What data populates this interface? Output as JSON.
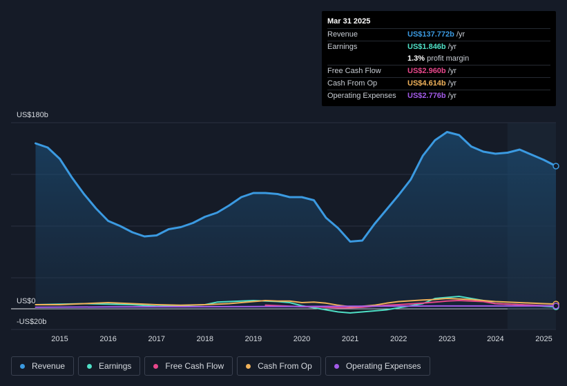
{
  "tooltip": {
    "date": "Mar 31 2025",
    "rows": [
      {
        "label": "Revenue",
        "value": "US$137.772b",
        "unit": "/yr",
        "color": "#3b9ae1"
      },
      {
        "label": "Earnings",
        "value": "US$1.846b",
        "unit": "/yr",
        "color": "#4fe0c6"
      },
      {
        "label": "",
        "value": "1.3%",
        "unit": "profit margin",
        "color": "#ffffff"
      },
      {
        "label": "Free Cash Flow",
        "value": "US$2.960b",
        "unit": "/yr",
        "color": "#e8478b"
      },
      {
        "label": "Cash From Op",
        "value": "US$4.614b",
        "unit": "/yr",
        "color": "#f0b25a"
      },
      {
        "label": "Operating Expenses",
        "value": "US$2.776b",
        "unit": "/yr",
        "color": "#a35be8"
      }
    ]
  },
  "legend": [
    {
      "label": "Revenue",
      "color": "#3b9ae1"
    },
    {
      "label": "Earnings",
      "color": "#4fe0c6"
    },
    {
      "label": "Free Cash Flow",
      "color": "#e8478b"
    },
    {
      "label": "Cash From Op",
      "color": "#f0b25a"
    },
    {
      "label": "Operating Expenses",
      "color": "#a35be8"
    }
  ],
  "chart_data": {
    "type": "line",
    "title": "",
    "xlabel": "",
    "ylabel": "",
    "xlim": [
      2014.45,
      2025.25
    ],
    "ylim": [
      -20,
      180
    ],
    "y_tick_labels": [
      {
        "value": 180,
        "label": "US$180b"
      },
      {
        "value": 0,
        "label": "US$0"
      },
      {
        "value": -20,
        "label": "-US$20b"
      }
    ],
    "x_ticks": [
      {
        "value": 2015,
        "label": "2015"
      },
      {
        "value": 2016,
        "label": "2016"
      },
      {
        "value": 2017,
        "label": "2017"
      },
      {
        "value": 2018,
        "label": "2018"
      },
      {
        "value": 2019,
        "label": "2019"
      },
      {
        "value": 2020,
        "label": "2020"
      },
      {
        "value": 2021,
        "label": "2021"
      },
      {
        "value": 2022,
        "label": "2022"
      },
      {
        "value": 2023,
        "label": "2023"
      },
      {
        "value": 2024,
        "label": "2024"
      },
      {
        "value": 2025,
        "label": "2025"
      }
    ],
    "highlight_from": 2024.25,
    "series": [
      {
        "name": "Revenue",
        "color": "#3b9ae1",
        "area": true,
        "points": [
          [
            2014.5,
            160
          ],
          [
            2014.75,
            156
          ],
          [
            2015.0,
            145
          ],
          [
            2015.25,
            127
          ],
          [
            2015.5,
            111
          ],
          [
            2015.75,
            97
          ],
          [
            2016.0,
            85
          ],
          [
            2016.25,
            80
          ],
          [
            2016.5,
            74
          ],
          [
            2016.75,
            70
          ],
          [
            2017.0,
            71
          ],
          [
            2017.25,
            77
          ],
          [
            2017.5,
            79
          ],
          [
            2017.75,
            83
          ],
          [
            2018.0,
            89
          ],
          [
            2018.25,
            93
          ],
          [
            2018.5,
            100
          ],
          [
            2018.75,
            108
          ],
          [
            2019.0,
            112
          ],
          [
            2019.25,
            112
          ],
          [
            2019.5,
            111
          ],
          [
            2019.75,
            108
          ],
          [
            2020.0,
            108
          ],
          [
            2020.25,
            105
          ],
          [
            2020.5,
            88
          ],
          [
            2020.75,
            78
          ],
          [
            2021.0,
            65
          ],
          [
            2021.25,
            66
          ],
          [
            2021.5,
            82
          ],
          [
            2021.75,
            96
          ],
          [
            2022.0,
            110
          ],
          [
            2022.25,
            125
          ],
          [
            2022.5,
            148
          ],
          [
            2022.75,
            163
          ],
          [
            2023.0,
            171
          ],
          [
            2023.25,
            168
          ],
          [
            2023.5,
            157
          ],
          [
            2023.75,
            152
          ],
          [
            2024.0,
            150
          ],
          [
            2024.25,
            151
          ],
          [
            2024.5,
            154
          ],
          [
            2024.75,
            149
          ],
          [
            2025.0,
            144
          ],
          [
            2025.25,
            138
          ]
        ]
      },
      {
        "name": "Earnings",
        "color": "#4fe0c6",
        "area": false,
        "points": [
          [
            2014.5,
            4
          ],
          [
            2015.0,
            4.5
          ],
          [
            2015.5,
            5
          ],
          [
            2016.0,
            4.5
          ],
          [
            2016.5,
            4
          ],
          [
            2017.0,
            2.5
          ],
          [
            2017.5,
            3
          ],
          [
            2018.0,
            4
          ],
          [
            2018.25,
            6.5
          ],
          [
            2018.75,
            7.5
          ],
          [
            2019.0,
            8
          ],
          [
            2019.5,
            7
          ],
          [
            2019.75,
            6
          ],
          [
            2020.0,
            3
          ],
          [
            2020.5,
            -1
          ],
          [
            2020.75,
            -3
          ],
          [
            2021.0,
            -4
          ],
          [
            2021.25,
            -3
          ],
          [
            2021.5,
            -2
          ],
          [
            2021.75,
            -1
          ],
          [
            2022.0,
            1
          ],
          [
            2022.5,
            5
          ],
          [
            2022.75,
            10
          ],
          [
            2023.0,
            11
          ],
          [
            2023.25,
            12
          ],
          [
            2023.5,
            10
          ],
          [
            2023.75,
            8
          ],
          [
            2024.0,
            5
          ],
          [
            2024.5,
            4
          ],
          [
            2025.0,
            2.5
          ],
          [
            2025.25,
            1.846
          ]
        ]
      },
      {
        "name": "Free Cash Flow",
        "color": "#e8478b",
        "area": false,
        "points": [
          [
            2019.25,
            3.5
          ],
          [
            2019.5,
            3
          ],
          [
            2019.75,
            2.5
          ],
          [
            2020.0,
            2
          ],
          [
            2020.25,
            2
          ],
          [
            2020.5,
            1.5
          ],
          [
            2020.75,
            1
          ],
          [
            2021.0,
            1
          ],
          [
            2021.25,
            1.5
          ],
          [
            2021.5,
            2.5
          ],
          [
            2021.75,
            3.5
          ],
          [
            2022.0,
            4
          ],
          [
            2022.5,
            5.5
          ],
          [
            2022.75,
            6.5
          ],
          [
            2023.0,
            7.5
          ],
          [
            2023.25,
            8
          ],
          [
            2023.5,
            7.5
          ],
          [
            2023.75,
            7
          ],
          [
            2024.0,
            5
          ],
          [
            2024.5,
            4
          ],
          [
            2025.0,
            3
          ],
          [
            2025.25,
            2.96
          ]
        ]
      },
      {
        "name": "Cash From Op",
        "color": "#f0b25a",
        "area": false,
        "points": [
          [
            2014.5,
            4
          ],
          [
            2015.0,
            4
          ],
          [
            2015.5,
            5
          ],
          [
            2016.0,
            6
          ],
          [
            2016.5,
            5
          ],
          [
            2017.0,
            4
          ],
          [
            2017.5,
            3.5
          ],
          [
            2018.0,
            4
          ],
          [
            2018.5,
            5
          ],
          [
            2019.0,
            7
          ],
          [
            2019.25,
            8
          ],
          [
            2019.5,
            7.5
          ],
          [
            2019.75,
            7.5
          ],
          [
            2020.0,
            6
          ],
          [
            2020.25,
            6.5
          ],
          [
            2020.5,
            5.5
          ],
          [
            2020.75,
            3.5
          ],
          [
            2021.0,
            2
          ],
          [
            2021.25,
            2.5
          ],
          [
            2021.5,
            3.5
          ],
          [
            2021.75,
            5.5
          ],
          [
            2022.0,
            7
          ],
          [
            2022.5,
            8.5
          ],
          [
            2022.75,
            9
          ],
          [
            2023.0,
            10
          ],
          [
            2023.25,
            9.5
          ],
          [
            2023.5,
            9
          ],
          [
            2023.75,
            8
          ],
          [
            2024.0,
            7
          ],
          [
            2024.5,
            6
          ],
          [
            2025.0,
            5
          ],
          [
            2025.25,
            4.614
          ]
        ]
      },
      {
        "name": "Operating Expenses",
        "color": "#a35be8",
        "area": false,
        "points": [
          [
            2014.5,
            1.5
          ],
          [
            2016.0,
            1.8
          ],
          [
            2017.5,
            2
          ],
          [
            2019.0,
            2.2
          ],
          [
            2020.0,
            2.3
          ],
          [
            2021.0,
            2.5
          ],
          [
            2022.0,
            2.6
          ],
          [
            2023.0,
            2.7
          ],
          [
            2024.0,
            2.75
          ],
          [
            2025.25,
            2.776
          ]
        ]
      }
    ]
  }
}
